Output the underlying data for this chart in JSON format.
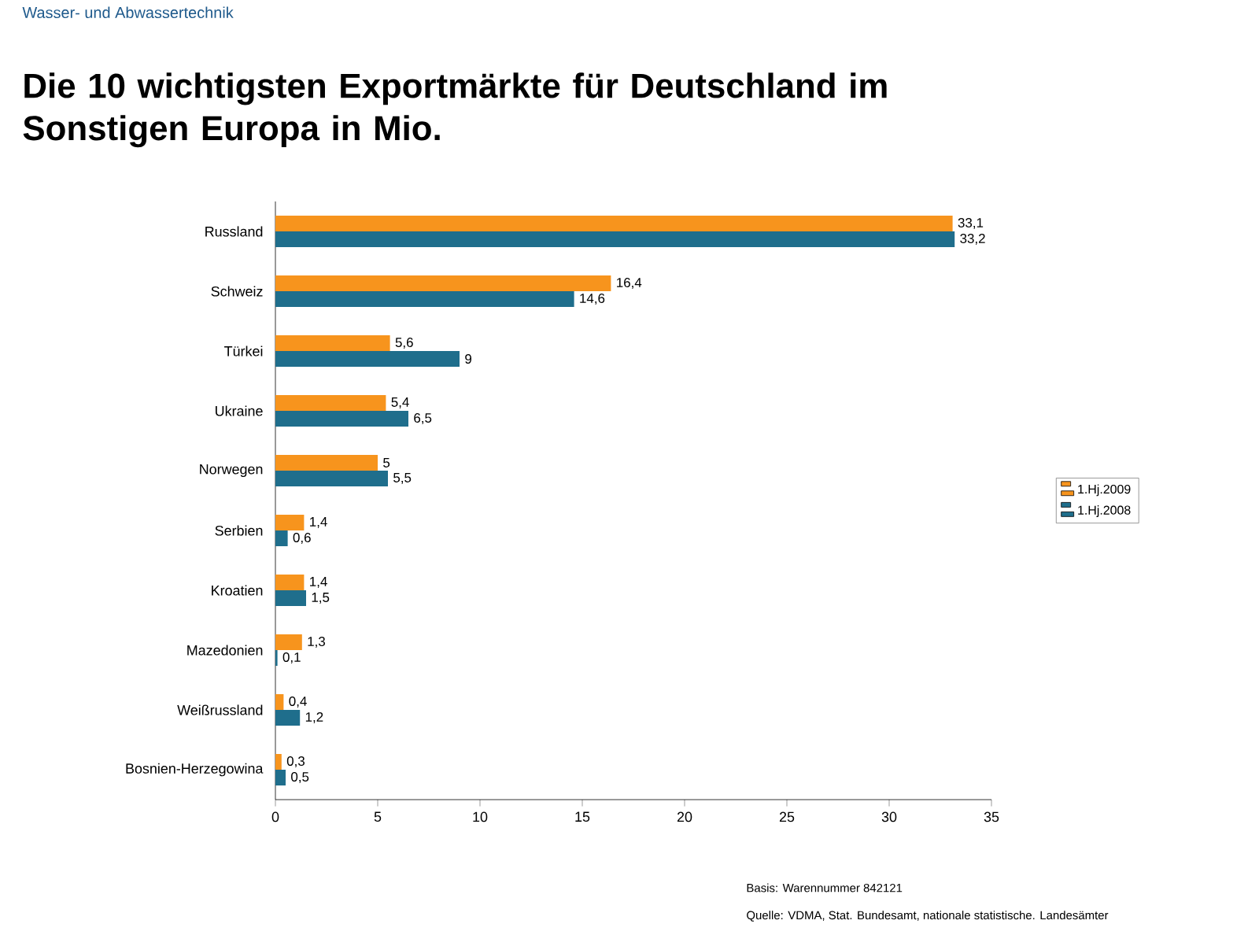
{
  "chart_data": {
    "type": "bar",
    "orientation": "horizontal",
    "title": "Die 10 wichtigsten Exportmärkte für Deutschland im Sonstigen Europa in Mio.",
    "categories": [
      "Russland",
      "Schweiz",
      "Türkei",
      "Ukraine",
      "Norwegen",
      "Serbien",
      "Kroatien",
      "Mazedonien",
      "Weißrussland",
      "Bosnien-Herzegowina"
    ],
    "series": [
      {
        "name": "1.Hj.2009",
        "color": "#f7941d",
        "values": [
          33.1,
          16.4,
          5.6,
          5.4,
          5,
          1.4,
          1.4,
          1.3,
          0.4,
          0.3
        ],
        "value_labels": [
          "33,1",
          "16,4",
          "5,6",
          "5,4",
          "5",
          "1,4",
          "1,4",
          "1,3",
          "0,4",
          "0,3"
        ]
      },
      {
        "name": "1.Hj.2008",
        "color": "#1f6e8c",
        "values": [
          33.2,
          14.6,
          9,
          6.5,
          5.5,
          0.6,
          1.5,
          0.1,
          1.2,
          0.5
        ],
        "value_labels": [
          "33,2",
          "14,6",
          "9",
          "6,5",
          "5,5",
          "0,6",
          "1,5",
          "0,1",
          "1,2",
          "0,5"
        ]
      }
    ],
    "xlim": [
      0,
      35
    ],
    "xticks": [
      0,
      5,
      10,
      15,
      20,
      25,
      30,
      35
    ],
    "legend": "right",
    "annotations": [
      "Wasser- und Abwassertechnik",
      "Basis: Warennummer 842121",
      "Quelle: VDMA, Stat. Bundesamt, nationale statistische. Landesämter"
    ]
  }
}
